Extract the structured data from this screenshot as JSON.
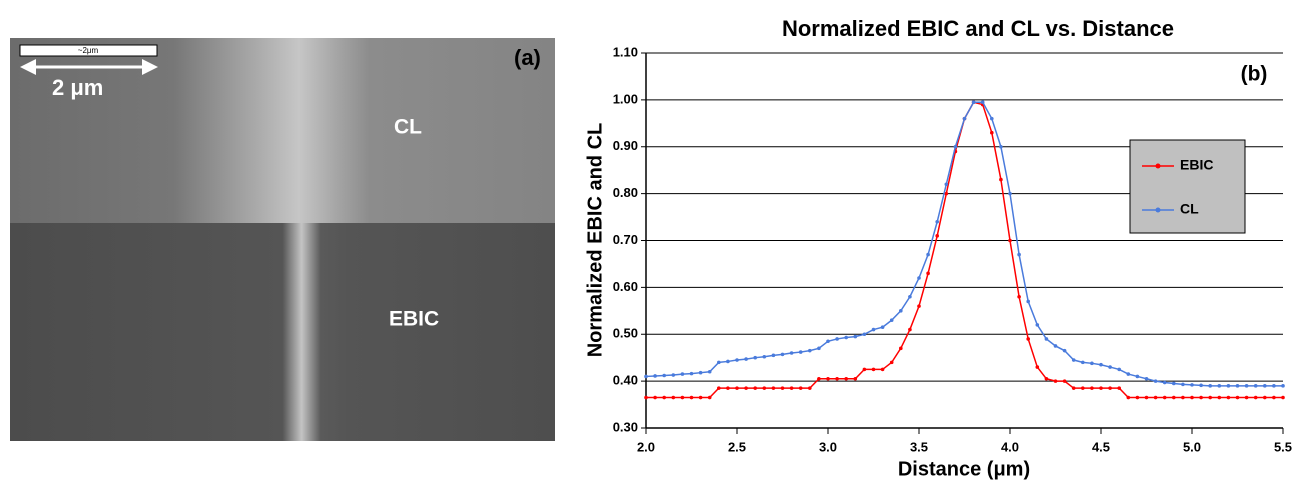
{
  "image_panel": {
    "label": "(a)",
    "scale_bar_text": "~2μm",
    "scale_label": "2 μm",
    "top_label": "CL",
    "bottom_label": "EBIC"
  },
  "chart_data": {
    "type": "line",
    "title": "Normalized EBIC and CL vs. Distance",
    "annotation": "(b)",
    "x_label": "Distance (μm)",
    "y_label": "Normalized EBIC and CL",
    "xlim": [
      2.0,
      5.5
    ],
    "ylim": [
      0.3,
      1.1
    ],
    "xticks": [
      {
        "value": 2,
        "label": "2.0"
      },
      2.5,
      {
        "value": 3,
        "label": "3.0"
      },
      3.5,
      {
        "value": 4,
        "label": "4.0"
      },
      4.5,
      {
        "value": 5,
        "label": "5.0"
      },
      5.5
    ],
    "yticks": [
      {
        "value": 0.3,
        "label": "0.30"
      },
      {
        "value": 0.4,
        "label": "0.40"
      },
      {
        "value": 0.5,
        "label": "0.50"
      },
      {
        "value": 0.6,
        "label": "0.60"
      },
      {
        "value": 0.7,
        "label": "0.70"
      },
      {
        "value": 0.8,
        "label": "0.80"
      },
      {
        "value": 0.9,
        "label": "0.90"
      },
      {
        "value": 1.0,
        "label": "1.00"
      },
      {
        "value": 1.1,
        "label": "1.10"
      }
    ],
    "grid": true,
    "legend": "right",
    "x": [
      2.0,
      2.05,
      2.1,
      2.15,
      2.2,
      2.25,
      2.3,
      2.35,
      2.4,
      2.45,
      2.5,
      2.55,
      2.6,
      2.65,
      2.7,
      2.75,
      2.8,
      2.85,
      2.9,
      2.95,
      3.0,
      3.05,
      3.1,
      3.15,
      3.2,
      3.25,
      3.3,
      3.35,
      3.4,
      3.45,
      3.5,
      3.55,
      3.6,
      3.65,
      3.7,
      3.75,
      3.8,
      3.85,
      3.9,
      3.95,
      4.0,
      4.05,
      4.1,
      4.15,
      4.2,
      4.25,
      4.3,
      4.35,
      4.4,
      4.45,
      4.5,
      4.55,
      4.6,
      4.65,
      4.7,
      4.75,
      4.8,
      4.85,
      4.9,
      4.95,
      5.0,
      5.05,
      5.1,
      5.15,
      5.2,
      5.25,
      5.3,
      5.35,
      5.4,
      5.45,
      5.5
    ],
    "series": [
      {
        "name": "EBIC",
        "color": "#ff0000",
        "values": [
          0.365,
          0.365,
          0.365,
          0.365,
          0.365,
          0.365,
          0.365,
          0.365,
          0.385,
          0.385,
          0.385,
          0.385,
          0.385,
          0.385,
          0.385,
          0.385,
          0.385,
          0.385,
          0.385,
          0.405,
          0.405,
          0.405,
          0.405,
          0.405,
          0.425,
          0.425,
          0.425,
          0.44,
          0.47,
          0.51,
          0.56,
          0.63,
          0.71,
          0.8,
          0.89,
          0.96,
          0.995,
          0.99,
          0.93,
          0.83,
          0.7,
          0.58,
          0.49,
          0.43,
          0.405,
          0.4,
          0.4,
          0.385,
          0.385,
          0.385,
          0.385,
          0.385,
          0.385,
          0.365,
          0.365,
          0.365,
          0.365,
          0.365,
          0.365,
          0.365,
          0.365,
          0.365,
          0.365,
          0.365,
          0.365,
          0.365,
          0.365,
          0.365,
          0.365,
          0.365,
          0.365
        ]
      },
      {
        "name": "CL",
        "color": "#4a7bdc",
        "values": [
          0.41,
          0.411,
          0.412,
          0.413,
          0.415,
          0.416,
          0.418,
          0.42,
          0.44,
          0.442,
          0.445,
          0.447,
          0.45,
          0.452,
          0.455,
          0.457,
          0.46,
          0.462,
          0.465,
          0.47,
          0.485,
          0.49,
          0.493,
          0.495,
          0.5,
          0.51,
          0.515,
          0.53,
          0.55,
          0.58,
          0.62,
          0.67,
          0.74,
          0.82,
          0.9,
          0.96,
          0.995,
          0.995,
          0.96,
          0.9,
          0.8,
          0.67,
          0.57,
          0.52,
          0.49,
          0.475,
          0.465,
          0.445,
          0.44,
          0.438,
          0.435,
          0.43,
          0.425,
          0.415,
          0.41,
          0.405,
          0.4,
          0.397,
          0.395,
          0.393,
          0.392,
          0.391,
          0.39,
          0.39,
          0.39,
          0.39,
          0.39,
          0.39,
          0.39,
          0.39,
          0.39
        ]
      }
    ]
  }
}
